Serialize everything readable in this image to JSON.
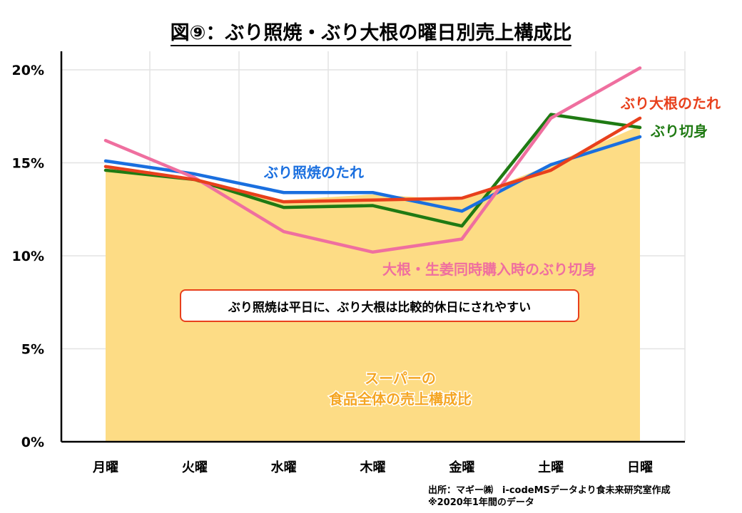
{
  "title": "図⑨：ぶり照焼・ぶり大根の曜日別売上構成比",
  "callout": "ぶり照焼は平日に、ぶり大根は比較的休日にされやすい",
  "source_line1": "出所：マギー㈱　i-codeMSデータより食未来研究室作成",
  "source_line2": "※2020年1年間のデータ",
  "chart_data": {
    "type": "line",
    "categories": [
      "月曜",
      "火曜",
      "水曜",
      "木曜",
      "金曜",
      "土曜",
      "日曜"
    ],
    "ylim": [
      0,
      20
    ],
    "yticks": [
      "0%",
      "5%",
      "10%",
      "15%",
      "20%"
    ],
    "ytick_values": [
      0,
      5,
      10,
      15,
      20
    ],
    "grid": true,
    "series": [
      {
        "name": "スーパーの\n食品全体の売上構成比",
        "kind": "area",
        "color": "#fddc85",
        "label_color": "#f5a623",
        "values": [
          14.7,
          14.1,
          13.0,
          13.3,
          13.0,
          14.9,
          17.0
        ]
      },
      {
        "name": "ぶり照焼のたれ",
        "kind": "line",
        "color": "#1a6fdf",
        "values": [
          15.1,
          14.4,
          13.4,
          13.4,
          12.4,
          14.9,
          16.4
        ]
      },
      {
        "name": "ぶり大根のたれ",
        "kind": "line",
        "color": "#e8401c",
        "values": [
          14.8,
          14.1,
          12.9,
          13.0,
          13.1,
          14.6,
          17.4
        ]
      },
      {
        "name": "ぶり切身",
        "kind": "line",
        "color": "#1f7a13",
        "values": [
          14.6,
          14.1,
          12.6,
          12.7,
          11.6,
          17.6,
          16.9
        ]
      },
      {
        "name": "大根・生姜同時購入時のぶり切身",
        "kind": "line",
        "color": "#ef6f9f",
        "values": [
          16.2,
          14.2,
          11.3,
          10.2,
          10.9,
          17.4,
          20.1
        ]
      }
    ]
  }
}
